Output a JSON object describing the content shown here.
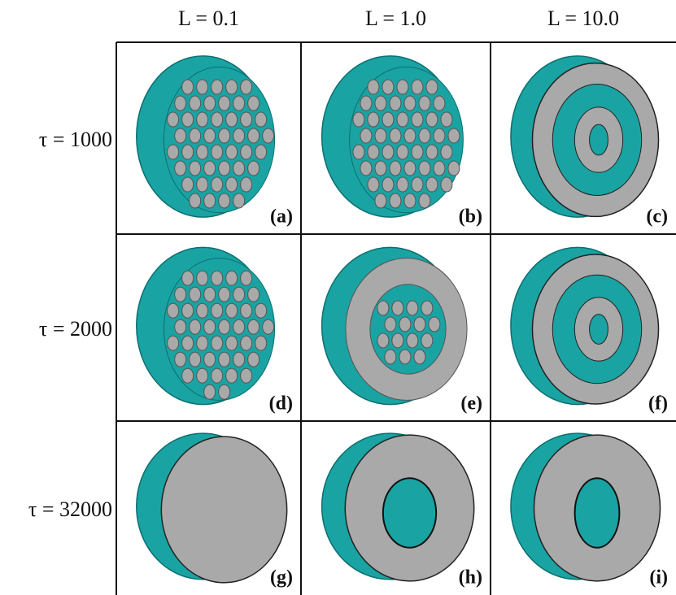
{
  "columns": [
    "L = 0.1",
    "L = 1.0",
    "L = 10.0"
  ],
  "rows": [
    "τ = 1000",
    "τ = 2000",
    "τ = 32000"
  ],
  "panels": [
    [
      "(a)",
      "(b)",
      "(c)"
    ],
    [
      "(d)",
      "(e)",
      "(f)"
    ],
    [
      "(g)",
      "(h)",
      "(i)"
    ]
  ]
}
